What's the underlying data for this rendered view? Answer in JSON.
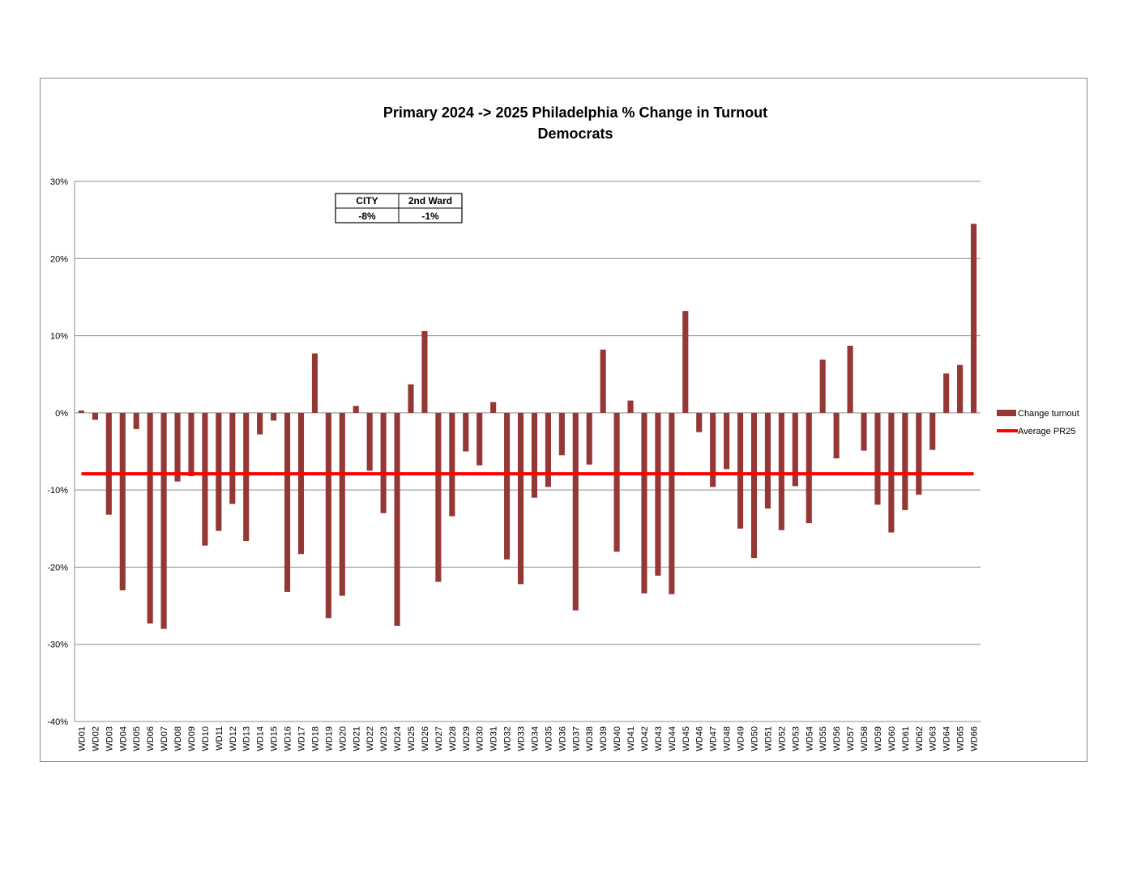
{
  "chart_data": {
    "type": "bar",
    "title_lines": [
      "Primary 2024 -> 2025 Philadelphia % Change in Turnout",
      "Democrats"
    ],
    "xlabel": "",
    "ylabel": "",
    "ylim": [
      -40,
      30
    ],
    "y_ticks": [
      {
        "value": 30,
        "label": "30%"
      },
      {
        "value": 20,
        "label": "20%"
      },
      {
        "value": 10,
        "label": "10%"
      },
      {
        "value": 0,
        "label": "0%"
      },
      {
        "value": -10,
        "label": "-10%"
      },
      {
        "value": -20,
        "label": "-20%"
      },
      {
        "value": -30,
        "label": "-30%"
      },
      {
        "value": -40,
        "label": "-40%"
      }
    ],
    "grid": true,
    "legend_position": "right",
    "categories": [
      "WD01",
      "WD02",
      "WD03",
      "WD04",
      "WD05",
      "WD06",
      "WD07",
      "WD08",
      "WD09",
      "WD10",
      "WD11",
      "WD12",
      "WD13",
      "WD14",
      "WD15",
      "WD16",
      "WD17",
      "WD18",
      "WD19",
      "WD20",
      "WD21",
      "WD22",
      "WD23",
      "WD24",
      "WD25",
      "WD26",
      "WD27",
      "WD28",
      "WD29",
      "WD30",
      "WD31",
      "WD32",
      "WD33",
      "WD34",
      "WD35",
      "WD36",
      "WD37",
      "WD38",
      "WD39",
      "WD40",
      "WD41",
      "WD42",
      "WD43",
      "WD44",
      "WD45",
      "WD46",
      "WD47",
      "WD48",
      "WD49",
      "WD50",
      "WD51",
      "WD52",
      "WD53",
      "WD54",
      "WD55",
      "WD56",
      "WD57",
      "WD58",
      "WD59",
      "WD60",
      "WD61",
      "WD62",
      "WD63",
      "WD64",
      "WD65",
      "WD66"
    ],
    "series": [
      {
        "name": "Change turnout",
        "type": "bar",
        "color": "#953735",
        "values": [
          0.3,
          -0.9,
          -13.2,
          -23.0,
          -2.1,
          -27.3,
          -28.0,
          -8.9,
          -8.2,
          -17.2,
          -15.3,
          -11.8,
          -16.6,
          -2.8,
          -1.0,
          -23.2,
          -18.3,
          7.7,
          -26.6,
          -23.7,
          0.9,
          -7.5,
          -13.0,
          -27.6,
          3.7,
          10.6,
          -21.9,
          -13.4,
          -5.0,
          -6.8,
          1.4,
          -19.0,
          -22.2,
          -11.0,
          -9.6,
          -5.5,
          -25.6,
          -6.7,
          8.2,
          -18.0,
          1.6,
          -23.4,
          -21.1,
          -23.5,
          13.2,
          -2.5,
          -9.6,
          -7.3,
          -15.0,
          -18.8,
          -12.4,
          -15.2,
          -9.5,
          -14.3,
          6.9,
          -5.9,
          8.7,
          -4.9,
          -11.9,
          -15.5,
          -12.6,
          -10.6,
          -4.8,
          5.1,
          6.2,
          24.5
        ]
      },
      {
        "name": "Average PR25",
        "type": "line",
        "color": "#ff0000",
        "value": -7.9
      }
    ],
    "inset_table": {
      "headers": [
        "CITY",
        "2nd Ward"
      ],
      "values": [
        "-8%",
        "-1%"
      ]
    }
  }
}
